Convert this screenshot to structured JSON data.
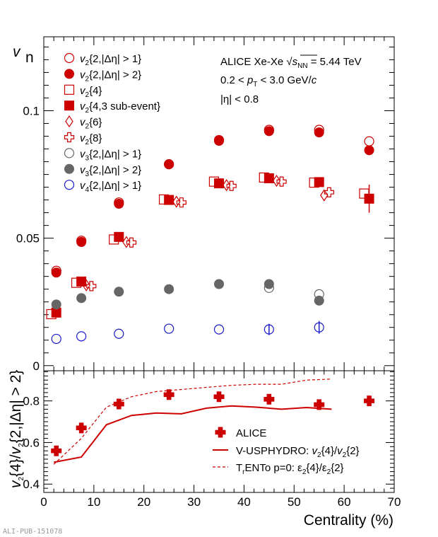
{
  "colors": {
    "red": "#cc0000",
    "grey": "#666666",
    "blue": "#1a1acc",
    "axis": "#000000"
  },
  "watermark": "ALI-PUB-151078",
  "chart_data": [
    {
      "type": "scatter",
      "ylabel": "v",
      "ylabel_sub": "n",
      "xlim": [
        0,
        70
      ],
      "ylim": [
        -0.002,
        0.129
      ],
      "yticks": [
        0,
        0.05,
        0.1
      ],
      "ytick_labels": [
        "0",
        "0.05",
        "0.1"
      ],
      "annotations": [
        "ALICE Xe-Xe √s_NN = 5.44 TeV",
        "0.2 < p_T < 3.0 GeV/c",
        "|η| < 0.8"
      ],
      "series": [
        {
          "name": "v2{2,|Δη| > 1}",
          "marker": "circle-open",
          "color": "#cc0000",
          "points": [
            [
              2.5,
              0.0372
            ],
            [
              7.5,
              0.049
            ],
            [
              15,
              0.064
            ],
            [
              25,
              0.079
            ],
            [
              35,
              0.0885
            ],
            [
              45,
              0.0925
            ],
            [
              55,
              0.0925
            ],
            [
              65,
              0.088
            ]
          ]
        },
        {
          "name": "v2{2,|Δη| > 2}",
          "marker": "circle-filled",
          "color": "#cc0000",
          "points": [
            [
              2.5,
              0.0365
            ],
            [
              7.5,
              0.0485
            ],
            [
              15,
              0.0635
            ],
            [
              25,
              0.079
            ],
            [
              35,
              0.0882
            ],
            [
              45,
              0.092
            ],
            [
              55,
              0.0915
            ],
            [
              65,
              0.0845
            ]
          ]
        },
        {
          "name": "v2{4}",
          "marker": "square-open",
          "color": "#cc0000",
          "points": [
            [
              1.5,
              0.0202
            ],
            [
              6.5,
              0.0325
            ],
            [
              14,
              0.0495
            ],
            [
              24,
              0.0652
            ],
            [
              34,
              0.0722
            ],
            [
              44,
              0.0738
            ],
            [
              54,
              0.0718
            ],
            [
              64,
              0.0675
            ]
          ]
        },
        {
          "name": "v2{4,3 sub-event}",
          "marker": "square-filled",
          "color": "#cc0000",
          "points": [
            [
              2.5,
              0.0208
            ],
            [
              7.5,
              0.033
            ],
            [
              15,
              0.0505
            ],
            [
              25,
              0.065
            ],
            [
              35,
              0.0715
            ],
            [
              45,
              0.0735
            ],
            [
              55,
              0.072
            ],
            [
              65,
              0.0655
            ]
          ],
          "errors": [
            0,
            0,
            0,
            0,
            0,
            0,
            0,
            0.0055
          ]
        },
        {
          "name": "v2{6}",
          "marker": "diamond-open",
          "color": "#cc0000",
          "points": [
            [
              8.5,
              0.0315
            ],
            [
              16.5,
              0.0485
            ],
            [
              26.5,
              0.0643
            ],
            [
              36.5,
              0.0708
            ],
            [
              46.5,
              0.0725
            ],
            [
              56,
              0.0668
            ]
          ]
        },
        {
          "name": "v2{8}",
          "marker": "cross-open",
          "color": "#cc0000",
          "points": [
            [
              9.5,
              0.0312
            ],
            [
              17.5,
              0.0483
            ],
            [
              27.5,
              0.064
            ],
            [
              37.5,
              0.0705
            ],
            [
              47.5,
              0.0722
            ],
            [
              57,
              0.068
            ]
          ]
        },
        {
          "name": "v3{2,|Δη| > 1}",
          "marker": "circle-open",
          "color": "#666666",
          "points": [
            [
              45,
              0.0305
            ],
            [
              55,
              0.028
            ]
          ]
        },
        {
          "name": "v3{2,|Δη| > 2}",
          "marker": "circle-filled",
          "color": "#666666",
          "points": [
            [
              2.5,
              0.024
            ],
            [
              7.5,
              0.0265
            ],
            [
              15,
              0.029
            ],
            [
              25,
              0.03
            ],
            [
              35,
              0.032
            ],
            [
              45,
              0.032
            ],
            [
              55,
              0.0255
            ]
          ]
        },
        {
          "name": "v4{2,|Δη| > 1}",
          "marker": "circle-open",
          "color": "#1a1acc",
          "points": [
            [
              2.5,
              0.0105
            ],
            [
              7.5,
              0.0115
            ],
            [
              15,
              0.0125
            ],
            [
              25,
              0.0145
            ],
            [
              35,
              0.0142
            ],
            [
              45,
              0.0142
            ],
            [
              55,
              0.015
            ]
          ],
          "errors": [
            0,
            0,
            0,
            0,
            0,
            0.0022,
            0.0025
          ]
        }
      ]
    },
    {
      "type": "line",
      "xlabel": "Centrality (%)",
      "ylabel": "v2{4}/v2{2,|Δη| > 2}",
      "xlim": [
        0,
        70
      ],
      "ylim": [
        0.36,
        0.945
      ],
      "xticks": [
        0,
        10,
        20,
        30,
        40,
        50,
        60,
        70
      ],
      "yticks": [
        0.4,
        0.6,
        0.8
      ],
      "ytick_labels": [
        "0.4",
        "0.6",
        "0.8"
      ],
      "series": [
        {
          "name": "ALICE",
          "marker": "cross-filled",
          "color": "#cc0000",
          "points": [
            [
              2.5,
              0.56
            ],
            [
              7.5,
              0.67
            ],
            [
              15,
              0.785
            ],
            [
              25,
              0.83
            ],
            [
              35,
              0.82
            ],
            [
              45,
              0.808
            ],
            [
              55,
              0.782
            ],
            [
              65,
              0.8
            ]
          ]
        },
        {
          "name": "V-USPHYDRO: v2{4}/v2{2}",
          "style": "solid",
          "color": "#cc0000",
          "points": [
            [
              2,
              0.505
            ],
            [
              7.5,
              0.53
            ],
            [
              12.5,
              0.685
            ],
            [
              17.5,
              0.73
            ],
            [
              22.5,
              0.742
            ],
            [
              27.5,
              0.738
            ],
            [
              32.5,
              0.765
            ],
            [
              37.5,
              0.776
            ],
            [
              42.5,
              0.77
            ],
            [
              47.5,
              0.76
            ],
            [
              52.5,
              0.768
            ],
            [
              57.5,
              0.76
            ]
          ]
        },
        {
          "name": "TrENTo p=0: ε2{4}/ε2{2}",
          "style": "dashed",
          "color": "#cc0000",
          "points": [
            [
              2,
              0.495
            ],
            [
              7.5,
              0.62
            ],
            [
              12.5,
              0.77
            ],
            [
              17.5,
              0.82
            ],
            [
              22.5,
              0.845
            ],
            [
              27.5,
              0.855
            ],
            [
              32.5,
              0.865
            ],
            [
              37.5,
              0.875
            ],
            [
              42.5,
              0.88
            ],
            [
              47.5,
              0.88
            ],
            [
              52.5,
              0.9
            ],
            [
              57.5,
              0.905
            ]
          ]
        }
      ]
    }
  ]
}
